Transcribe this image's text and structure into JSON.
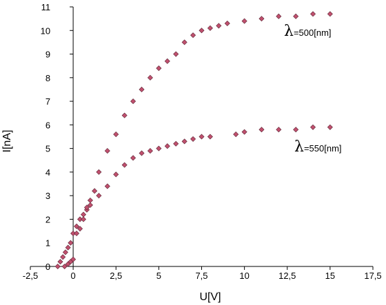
{
  "chart_data": {
    "type": "scatter",
    "xlabel": "U[V]",
    "ylabel": "I[nA]",
    "xlim": [
      -2.5,
      17.5
    ],
    "ylim": [
      0,
      11
    ],
    "x_ticks": [
      "-2,5",
      "0",
      "2,5",
      "5",
      "7,5",
      "10",
      "12,5",
      "15",
      "17,5"
    ],
    "y_ticks": [
      "0",
      "1",
      "2",
      "3",
      "4",
      "5",
      "6",
      "7",
      "8",
      "9",
      "10",
      "11"
    ],
    "grid": false,
    "marker_color": "#c0506e",
    "series": [
      {
        "name": "λ=500[nm]",
        "label": {
          "symbol": "λ",
          "text": "=500[nm]"
        },
        "points": [
          [
            -0.9,
            0.0
          ],
          [
            -0.75,
            0.2
          ],
          [
            -0.6,
            0.4
          ],
          [
            -0.45,
            0.6
          ],
          [
            -0.3,
            0.8
          ],
          [
            -0.15,
            1.0
          ],
          [
            0.0,
            1.4
          ],
          [
            0.2,
            1.7
          ],
          [
            0.4,
            2.0
          ],
          [
            0.6,
            2.0
          ],
          [
            0.8,
            2.4
          ],
          [
            1.0,
            2.8
          ],
          [
            1.25,
            3.2
          ],
          [
            1.5,
            4.0
          ],
          [
            2.0,
            4.9
          ],
          [
            2.5,
            5.6
          ],
          [
            3.0,
            6.4
          ],
          [
            3.5,
            7.0
          ],
          [
            4.0,
            7.5
          ],
          [
            4.5,
            8.0
          ],
          [
            5.0,
            8.4
          ],
          [
            5.5,
            8.7
          ],
          [
            6.0,
            9.0
          ],
          [
            6.5,
            9.5
          ],
          [
            7.0,
            9.8
          ],
          [
            7.5,
            10.0
          ],
          [
            8.0,
            10.1
          ],
          [
            8.5,
            10.2
          ],
          [
            9.0,
            10.3
          ],
          [
            10.0,
            10.4
          ],
          [
            11.0,
            10.5
          ],
          [
            12.0,
            10.6
          ],
          [
            13.0,
            10.6
          ],
          [
            14.0,
            10.7
          ],
          [
            15.0,
            10.7
          ]
        ]
      },
      {
        "name": "λ=550[nm]",
        "label": {
          "symbol": "λ",
          "text": "=550[nm]"
        },
        "points": [
          [
            -0.5,
            0.0
          ],
          [
            -0.3,
            0.1
          ],
          [
            -0.15,
            0.2
          ],
          [
            0.0,
            0.3
          ],
          [
            0.2,
            1.4
          ],
          [
            0.4,
            1.6
          ],
          [
            0.6,
            2.2
          ],
          [
            0.8,
            2.5
          ],
          [
            1.0,
            2.6
          ],
          [
            1.5,
            3.0
          ],
          [
            2.0,
            3.4
          ],
          [
            2.5,
            3.9
          ],
          [
            3.0,
            4.3
          ],
          [
            3.5,
            4.6
          ],
          [
            4.0,
            4.8
          ],
          [
            4.5,
            4.9
          ],
          [
            5.0,
            5.0
          ],
          [
            5.5,
            5.1
          ],
          [
            6.0,
            5.2
          ],
          [
            6.5,
            5.3
          ],
          [
            7.0,
            5.4
          ],
          [
            7.5,
            5.5
          ],
          [
            8.0,
            5.5
          ],
          [
            9.5,
            5.6
          ],
          [
            10.0,
            5.7
          ],
          [
            11.0,
            5.8
          ],
          [
            12.0,
            5.8
          ],
          [
            13.0,
            5.8
          ],
          [
            14.0,
            5.9
          ],
          [
            15.0,
            5.9
          ]
        ]
      }
    ]
  }
}
